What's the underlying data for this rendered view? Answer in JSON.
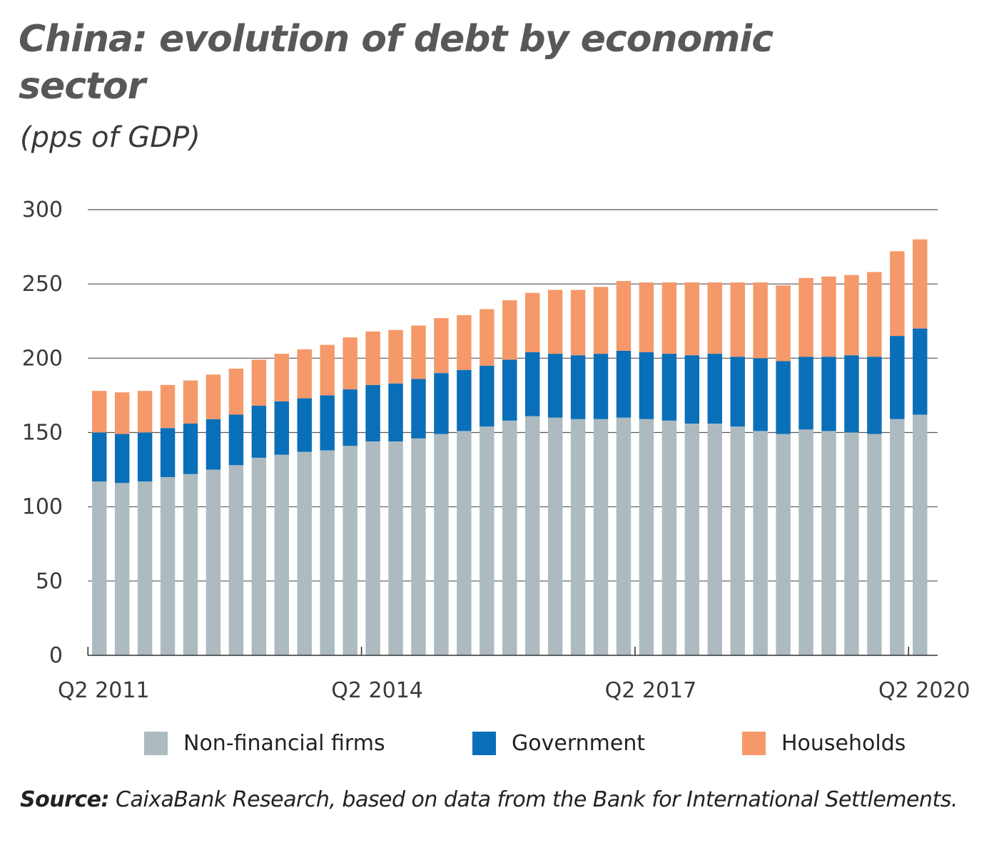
{
  "title": "China: evolution of debt by economic sector",
  "subtitle": "(pps of GDP)",
  "source_label": "Source:",
  "source_text": "CaixaBank Research, based on data from the Bank for International Settlements.",
  "colors": {
    "non_financial_firms": "#adbbc0",
    "government": "#0a6fb9",
    "households": "#f5996a",
    "grid": "#555555",
    "axis": "#333333"
  },
  "chart_data": {
    "type": "bar",
    "stacked": true,
    "y_ticks": [
      "0",
      "50",
      "100",
      "150",
      "200",
      "250",
      "300"
    ],
    "ylim": [
      0,
      300
    ],
    "grid": true,
    "legend_position": "bottom",
    "x_tick_labels": [
      {
        "index": 0,
        "label": "Q2 2011"
      },
      {
        "index": 12,
        "label": "Q2 2014"
      },
      {
        "index": 24,
        "label": "Q2 2017"
      },
      {
        "index": 36,
        "label": "Q2 2020"
      }
    ],
    "categories": [
      "Q2 2011",
      "Q3 2011",
      "Q4 2011",
      "Q1 2012",
      "Q2 2012",
      "Q3 2012",
      "Q4 2012",
      "Q1 2013",
      "Q2 2013",
      "Q3 2013",
      "Q4 2013",
      "Q1 2014",
      "Q2 2014",
      "Q3 2014",
      "Q4 2014",
      "Q1 2015",
      "Q2 2015",
      "Q3 2015",
      "Q4 2015",
      "Q1 2016",
      "Q2 2016",
      "Q3 2016",
      "Q4 2016",
      "Q1 2017",
      "Q2 2017",
      "Q3 2017",
      "Q4 2017",
      "Q1 2018",
      "Q2 2018",
      "Q3 2018",
      "Q4 2018",
      "Q1 2019",
      "Q2 2019",
      "Q3 2019",
      "Q4 2019",
      "Q1 2020",
      "Q2 2020"
    ],
    "series": [
      {
        "name": "Non-financial firms",
        "values": [
          117,
          116,
          117,
          120,
          122,
          125,
          128,
          133,
          135,
          137,
          138,
          141,
          144,
          144,
          146,
          149,
          151,
          154,
          158,
          161,
          160,
          159,
          159,
          160,
          159,
          158,
          156,
          156,
          154,
          151,
          149,
          152,
          151,
          150,
          149,
          159,
          162
        ]
      },
      {
        "name": "Government",
        "values": [
          33,
          33,
          33,
          33,
          34,
          34,
          34,
          35,
          36,
          36,
          37,
          38,
          38,
          39,
          40,
          41,
          41,
          41,
          41,
          43,
          43,
          43,
          44,
          45,
          45,
          45,
          46,
          47,
          47,
          49,
          49,
          49,
          50,
          52,
          52,
          56,
          58
        ]
      },
      {
        "name": "Households",
        "values": [
          28,
          28,
          28,
          29,
          29,
          30,
          31,
          31,
          32,
          33,
          34,
          35,
          36,
          36,
          36,
          37,
          37,
          38,
          40,
          40,
          43,
          44,
          45,
          47,
          47,
          48,
          49,
          48,
          50,
          51,
          51,
          53,
          54,
          54,
          57,
          57,
          60
        ]
      }
    ]
  }
}
